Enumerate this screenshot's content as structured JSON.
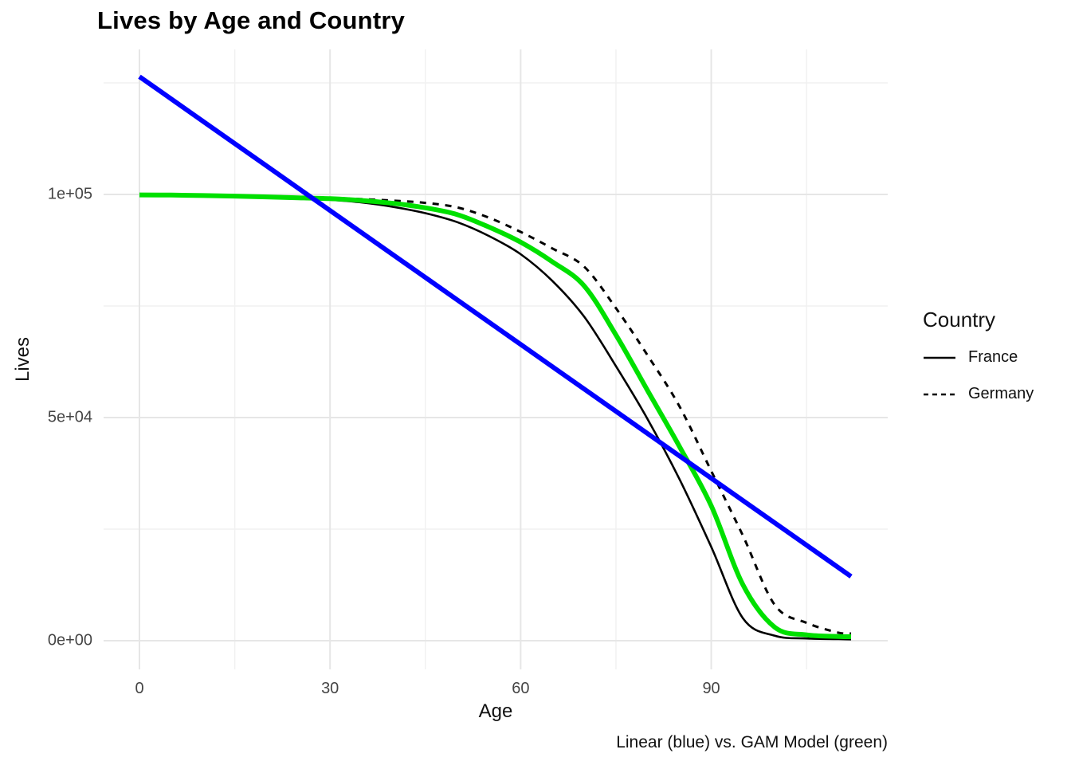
{
  "chart_data": {
    "type": "line",
    "title": "Lives by Age and Country",
    "xlabel": "Age",
    "ylabel": "Lives",
    "caption": "Linear (blue) vs. GAM Model (green)",
    "xlim": [
      0,
      112
    ],
    "ylim": [
      0,
      126400
    ],
    "grid": true,
    "x_ticks": [
      {
        "value": 0,
        "label": "0"
      },
      {
        "value": 30,
        "label": "30"
      },
      {
        "value": 60,
        "label": "60"
      },
      {
        "value": 90,
        "label": "90"
      }
    ],
    "y_ticks": [
      {
        "value": 0,
        "label": "0e+00"
      },
      {
        "value": 50000,
        "label": "5e+04"
      },
      {
        "value": 100000,
        "label": "1e+05"
      }
    ],
    "x_minor": [
      15,
      45,
      75,
      105
    ],
    "y_minor": [
      25000,
      75000,
      125000
    ],
    "legend": {
      "title": "Country",
      "position": "right",
      "items": [
        {
          "label": "France",
          "line": "solid"
        },
        {
          "label": "Germany",
          "line": "dashed"
        }
      ]
    },
    "ages": [
      0,
      5,
      10,
      15,
      20,
      25,
      30,
      35,
      40,
      45,
      50,
      55,
      60,
      65,
      70,
      75,
      80,
      85,
      90,
      95,
      100,
      105,
      110,
      112
    ],
    "series": [
      {
        "name": "France",
        "role": "country-observed",
        "color": "#000000",
        "width": 2.6,
        "dash": "",
        "values": [
          100000,
          99950,
          99850,
          99700,
          99500,
          99200,
          98800,
          98200,
          97200,
          95800,
          93800,
          90700,
          86600,
          80600,
          72600,
          61500,
          49600,
          36200,
          21000,
          5000,
          1100,
          500,
          350,
          300
        ]
      },
      {
        "name": "Germany",
        "role": "country-observed",
        "color": "#000000",
        "width": 3,
        "dash": "8 8",
        "values": [
          100000,
          99960,
          99900,
          99800,
          99650,
          99450,
          99250,
          98950,
          98600,
          98100,
          97100,
          94800,
          91600,
          87900,
          83800,
          74500,
          63900,
          52500,
          38000,
          23500,
          8000,
          4000,
          1800,
          1600
        ]
      },
      {
        "name": "GAM Model",
        "role": "gam-fit",
        "color": "#00E000",
        "width": 6,
        "dash": "",
        "values": [
          99900,
          99850,
          99750,
          99620,
          99450,
          99250,
          99050,
          98650,
          98000,
          97000,
          95500,
          92700,
          89300,
          84900,
          79500,
          68500,
          56000,
          43500,
          30200,
          12500,
          3000,
          1300,
          950,
          900
        ]
      },
      {
        "name": "Linear Model",
        "role": "linear-fit",
        "color": "#0000FF",
        "width": 6,
        "dash": "",
        "values": [
          126400,
          121400,
          116400,
          111400,
          106400,
          101400,
          96400,
          91400,
          86400,
          81400,
          76400,
          71400,
          66400,
          61400,
          56400,
          51400,
          46400,
          41400,
          36400,
          31400,
          26400,
          21400,
          16400,
          14400
        ]
      }
    ],
    "colors": {
      "linear_line": "#0000FF",
      "gam_line": "#00E000",
      "country_lines": "#000000",
      "grid_major": "#E6E6E6",
      "grid_minor": "#F1F1F1"
    }
  }
}
